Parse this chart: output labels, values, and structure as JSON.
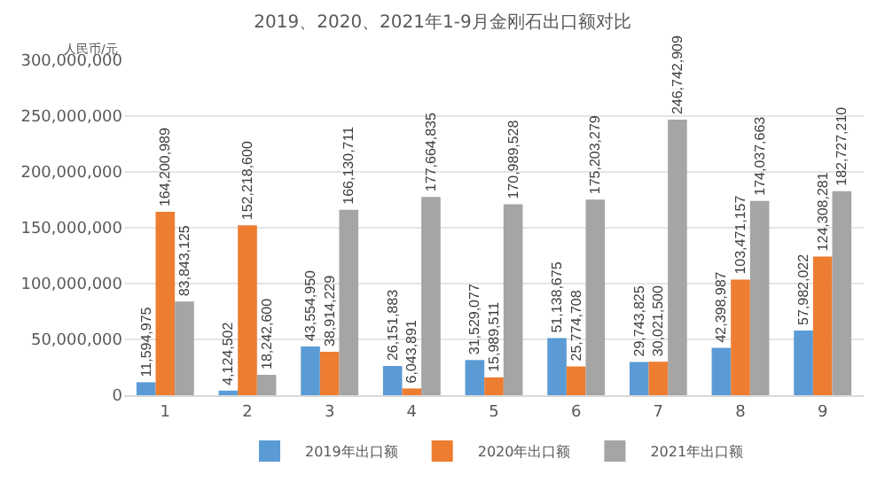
{
  "chart_data": {
    "type": "bar",
    "title": "2019、2020、2021年1-9月金刚石出口额对比",
    "ylabel": "人民币/元",
    "categories": [
      "1",
      "2",
      "3",
      "4",
      "5",
      "6",
      "7",
      "8",
      "9"
    ],
    "series": [
      {
        "name": "2019年出口额",
        "color": "#5b9bd5",
        "values": [
          11594975,
          4124502,
          43554950,
          26151883,
          31529077,
          51138675,
          29743825,
          42398987,
          57982022
        ],
        "value_labels": [
          "11,594,975",
          "4,124,502",
          "43,554,950",
          "26,151,883",
          "31,529,077",
          "51,138,675",
          "29,743,825",
          "42,398,987",
          "57,982,022"
        ]
      },
      {
        "name": "2020年出口额",
        "color": "#ed7d31",
        "values": [
          164200989,
          152218600,
          38914229,
          6043891,
          15989511,
          25774708,
          30021500,
          103471157,
          124308281
        ],
        "value_labels": [
          "164,200,989",
          "152,218,600",
          "38,914,229",
          "6,043,891",
          "15,989,511",
          "25,774,708",
          "30,021,500",
          "103,471,157",
          "124,308,281"
        ]
      },
      {
        "name": "2021年出口额",
        "color": "#a5a5a5",
        "values": [
          83843125,
          18242600,
          166130711,
          177664835,
          170989528,
          175203279,
          246742909,
          174037663,
          182727210
        ],
        "value_labels": [
          "83,843,125",
          "18,242,600",
          "166,130,711",
          "177,664,835",
          "170,989,528",
          "175,203,279",
          "246,742,909",
          "174,037,663",
          "182,727,210"
        ]
      }
    ],
    "ylim": [
      0,
      300000000
    ],
    "yticks": [
      0,
      {
        "value": 50000000,
        "label": "50,000,000"
      },
      {
        "value": 100000000,
        "label": "100,000,000"
      },
      {
        "value": 150000000,
        "label": "150,000,000"
      },
      {
        "value": 200000000,
        "label": "200,000,000"
      },
      {
        "value": 250000000,
        "label": "250,000,000"
      },
      {
        "value": 300000000,
        "label": "300,000,000"
      }
    ],
    "grid": "y",
    "legend": "bottom"
  }
}
